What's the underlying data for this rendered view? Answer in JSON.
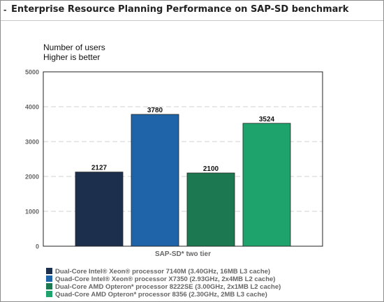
{
  "header": {
    "title": "Enterprise Resource Planning Performance on SAP-SD benchmark"
  },
  "chart_data": {
    "type": "bar",
    "title": "Enterprise Resource Planning Performance on SAP-SD benchmark",
    "notes": [
      "Number of users",
      "Higher is better"
    ],
    "xlabel": "SAP-SD* two tier",
    "ylabel": "",
    "ylim": [
      0,
      5000
    ],
    "yticks": [
      0,
      1000,
      2000,
      3000,
      4000,
      5000
    ],
    "grid": true,
    "legend_position": "bottom",
    "categories": [
      "SAP-SD* two tier"
    ],
    "series": [
      {
        "name": "Dual-Core Intel® Xeon® processor 7140M (3.40GHz, 16MB L3 cache)",
        "values": [
          2127
        ],
        "color": "#1c2f4c"
      },
      {
        "name": "Quad-Core Intel® Xeon® processor X7350 (2.93GHz, 2x4MB L2 cache)",
        "values": [
          3780
        ],
        "color": "#1f63a8"
      },
      {
        "name": "Dual-Core AMD Opteron* processor 8222SE (3.00GHz, 2x1MB L2 cache)",
        "values": [
          2100
        ],
        "color": "#1b7850"
      },
      {
        "name": "Quad-Core AMD Opteron* processor 8356 (2.30GHz, 2MB L3 cache)",
        "values": [
          3524
        ],
        "color": "#1fa36c"
      }
    ],
    "data_labels": [
      "2127",
      "3780",
      "2100",
      "3524"
    ]
  }
}
